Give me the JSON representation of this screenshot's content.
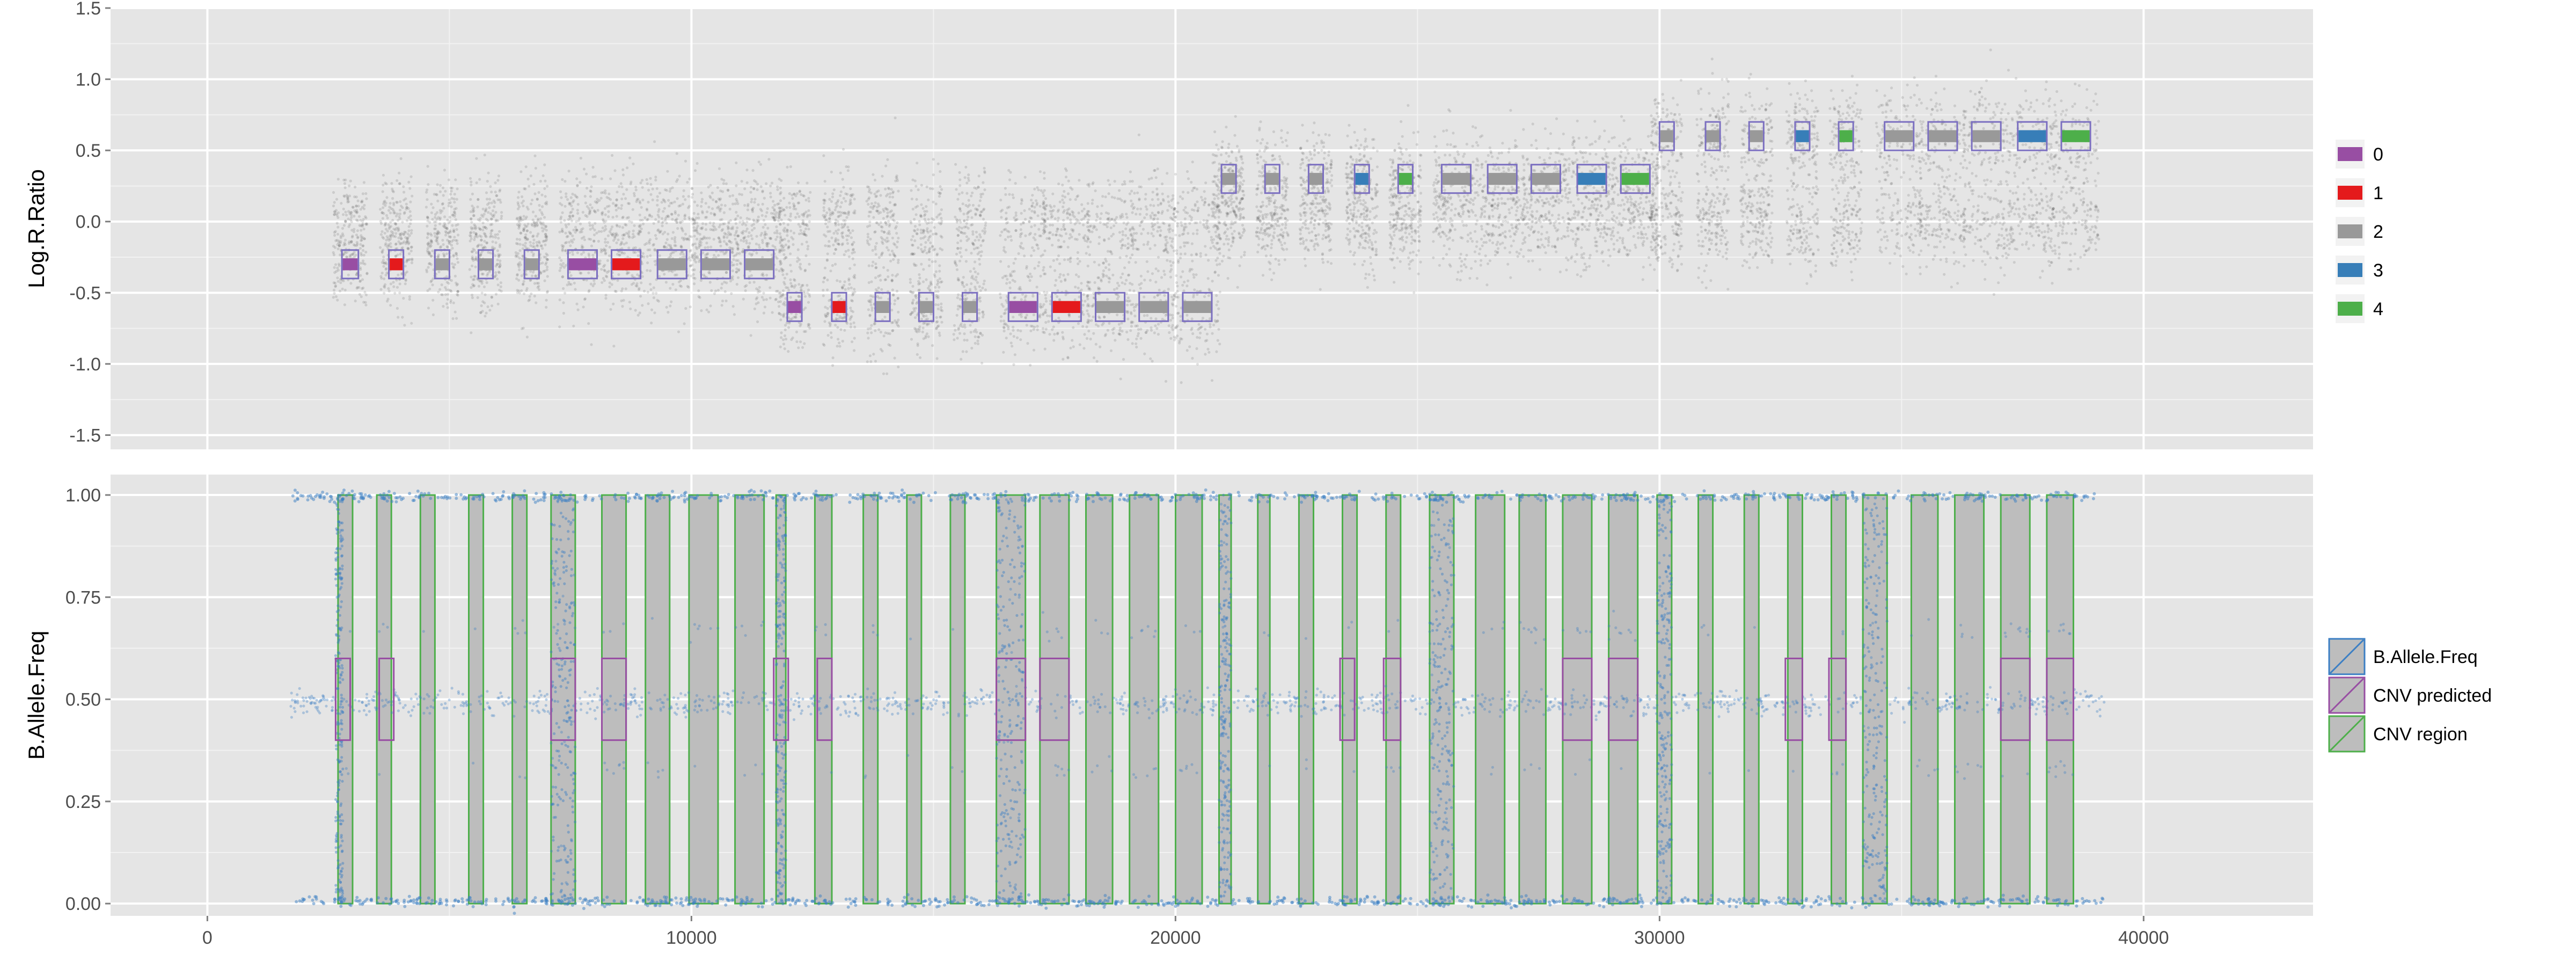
{
  "chart_data": [
    {
      "type": "scatter",
      "panel": "top",
      "ylabel": "Log.R.Ratio",
      "ylim": [
        -1.6,
        1.5
      ],
      "yticks": [
        -1.5,
        -1.0,
        -0.5,
        0.0,
        0.5,
        1.0,
        1.5
      ],
      "ytick_labels": [
        "-1.5",
        "-1.0",
        "-0.5",
        "0.0",
        "0.5",
        "1.0",
        "1.5"
      ],
      "xlim": [
        -2000,
        43500
      ],
      "xgrid": [
        0,
        10000,
        20000,
        30000,
        40000
      ],
      "grid": true,
      "point_color": "#333333",
      "legend": {
        "position": "right",
        "items": [
          {
            "label": "0",
            "color": "#984EA3"
          },
          {
            "label": "1",
            "color": "#E41A1C"
          },
          {
            "label": "2",
            "color": "#999999"
          },
          {
            "label": "3",
            "color": "#377EB8"
          },
          {
            "label": "4",
            "color": "#4DAF4A"
          }
        ]
      },
      "cnv_boxes": [
        {
          "x0": 2780,
          "x1": 3120,
          "y0": -0.4,
          "y1": -0.2,
          "state": "0"
        },
        {
          "x0": 3750,
          "x1": 4050,
          "y0": -0.4,
          "y1": -0.2,
          "state": "1"
        },
        {
          "x0": 4700,
          "x1": 5000,
          "y0": -0.4,
          "y1": -0.2,
          "state": "2"
        },
        {
          "x0": 5600,
          "x1": 5900,
          "y0": -0.4,
          "y1": -0.2,
          "state": "2"
        },
        {
          "x0": 6550,
          "x1": 6850,
          "y0": -0.4,
          "y1": -0.2,
          "state": "2"
        },
        {
          "x0": 7450,
          "x1": 8050,
          "y0": -0.4,
          "y1": -0.2,
          "state": "0"
        },
        {
          "x0": 8350,
          "x1": 8950,
          "y0": -0.4,
          "y1": -0.2,
          "state": "1"
        },
        {
          "x0": 9300,
          "x1": 9900,
          "y0": -0.4,
          "y1": -0.2,
          "state": "2"
        },
        {
          "x0": 10200,
          "x1": 10800,
          "y0": -0.4,
          "y1": -0.2,
          "state": "2"
        },
        {
          "x0": 11100,
          "x1": 11700,
          "y0": -0.4,
          "y1": -0.2,
          "state": "2"
        },
        {
          "x0": 11980,
          "x1": 12280,
          "y0": -0.7,
          "y1": -0.5,
          "state": "0"
        },
        {
          "x0": 12900,
          "x1": 13200,
          "y0": -0.7,
          "y1": -0.5,
          "state": "1"
        },
        {
          "x0": 13800,
          "x1": 14100,
          "y0": -0.7,
          "y1": -0.5,
          "state": "2"
        },
        {
          "x0": 14700,
          "x1": 15000,
          "y0": -0.7,
          "y1": -0.5,
          "state": "2"
        },
        {
          "x0": 15600,
          "x1": 15900,
          "y0": -0.7,
          "y1": -0.5,
          "state": "2"
        },
        {
          "x0": 16550,
          "x1": 17150,
          "y0": -0.7,
          "y1": -0.5,
          "state": "0"
        },
        {
          "x0": 17450,
          "x1": 18050,
          "y0": -0.7,
          "y1": -0.5,
          "state": "1"
        },
        {
          "x0": 18350,
          "x1": 18950,
          "y0": -0.7,
          "y1": -0.5,
          "state": "2"
        },
        {
          "x0": 19250,
          "x1": 19850,
          "y0": -0.7,
          "y1": -0.5,
          "state": "2"
        },
        {
          "x0": 20150,
          "x1": 20750,
          "y0": -0.7,
          "y1": -0.5,
          "state": "2"
        },
        {
          "x0": 20950,
          "x1": 21250,
          "y0": 0.2,
          "y1": 0.4,
          "state": "2"
        },
        {
          "x0": 21850,
          "x1": 22150,
          "y0": 0.2,
          "y1": 0.4,
          "state": "2"
        },
        {
          "x0": 22750,
          "x1": 23050,
          "y0": 0.2,
          "y1": 0.4,
          "state": "2"
        },
        {
          "x0": 23700,
          "x1": 24000,
          "y0": 0.2,
          "y1": 0.4,
          "state": "3"
        },
        {
          "x0": 24600,
          "x1": 24900,
          "y0": 0.2,
          "y1": 0.4,
          "state": "4"
        },
        {
          "x0": 25500,
          "x1": 26100,
          "y0": 0.2,
          "y1": 0.4,
          "state": "2"
        },
        {
          "x0": 26450,
          "x1": 27050,
          "y0": 0.2,
          "y1": 0.4,
          "state": "2"
        },
        {
          "x0": 27350,
          "x1": 27950,
          "y0": 0.2,
          "y1": 0.4,
          "state": "2"
        },
        {
          "x0": 28300,
          "x1": 28900,
          "y0": 0.2,
          "y1": 0.4,
          "state": "3"
        },
        {
          "x0": 29200,
          "x1": 29800,
          "y0": 0.2,
          "y1": 0.4,
          "state": "4"
        },
        {
          "x0": 30000,
          "x1": 30300,
          "y0": 0.5,
          "y1": 0.7,
          "state": "2"
        },
        {
          "x0": 30950,
          "x1": 31250,
          "y0": 0.5,
          "y1": 0.7,
          "state": "2"
        },
        {
          "x0": 31850,
          "x1": 32150,
          "y0": 0.5,
          "y1": 0.7,
          "state": "2"
        },
        {
          "x0": 32800,
          "x1": 33100,
          "y0": 0.5,
          "y1": 0.7,
          "state": "3"
        },
        {
          "x0": 33700,
          "x1": 34000,
          "y0": 0.5,
          "y1": 0.7,
          "state": "4"
        },
        {
          "x0": 34650,
          "x1": 35250,
          "y0": 0.5,
          "y1": 0.7,
          "state": "2"
        },
        {
          "x0": 35550,
          "x1": 36150,
          "y0": 0.5,
          "y1": 0.7,
          "state": "2"
        },
        {
          "x0": 36450,
          "x1": 37050,
          "y0": 0.5,
          "y1": 0.7,
          "state": "2"
        },
        {
          "x0": 37400,
          "x1": 38000,
          "y0": 0.5,
          "y1": 0.7,
          "state": "3"
        },
        {
          "x0": 38300,
          "x1": 38900,
          "y0": 0.5,
          "y1": 0.7,
          "state": "4"
        }
      ]
    },
    {
      "type": "scatter",
      "panel": "bottom",
      "ylabel": "B.Allele.Freq",
      "ylim": [
        -0.03,
        1.05
      ],
      "yticks": [
        0.0,
        0.25,
        0.5,
        0.75,
        1.0
      ],
      "ytick_labels": [
        "0.00",
        "0.25",
        "0.50",
        "0.75",
        "1.00"
      ],
      "xlabel": "",
      "xlim": [
        -2000,
        43500
      ],
      "xticks": [
        0,
        10000,
        20000,
        30000,
        40000
      ],
      "xtick_labels": [
        "0",
        "10000",
        "20000",
        "30000",
        "40000"
      ],
      "grid": true,
      "data_range": [
        1700,
        39200
      ],
      "point_color": "#3C7FC4",
      "legend": {
        "position": "right",
        "items": [
          {
            "label": "B.Allele.Freq",
            "color": "#3C7FC4"
          },
          {
            "label": "CNV predicted",
            "color": "#984EA3"
          },
          {
            "label": "CNV region",
            "color": "#4DAF4A"
          }
        ]
      },
      "dense_regions": [
        [
          2650,
          2800
        ],
        [
          7100,
          7600
        ],
        [
          11750,
          11950
        ],
        [
          16300,
          16900
        ],
        [
          20900,
          21150
        ],
        [
          25250,
          25750
        ],
        [
          29950,
          30250
        ],
        [
          34200,
          34700
        ]
      ],
      "cnv_regions": [
        [
          2700,
          3000
        ],
        [
          3500,
          3800
        ],
        [
          4400,
          4700
        ],
        [
          5400,
          5700
        ],
        [
          6300,
          6600
        ],
        [
          7100,
          7600
        ],
        [
          8150,
          8650
        ],
        [
          9050,
          9550
        ],
        [
          9950,
          10550
        ],
        [
          10900,
          11500
        ],
        [
          11750,
          11950
        ],
        [
          12550,
          12900
        ],
        [
          13550,
          13850
        ],
        [
          14450,
          14750
        ],
        [
          15350,
          15650
        ],
        [
          16300,
          16900
        ],
        [
          17200,
          17800
        ],
        [
          18150,
          18700
        ],
        [
          19050,
          19650
        ],
        [
          20000,
          20550
        ],
        [
          20900,
          21150
        ],
        [
          21700,
          21950
        ],
        [
          22550,
          22850
        ],
        [
          23450,
          23750
        ],
        [
          24350,
          24650
        ],
        [
          25250,
          25750
        ],
        [
          26200,
          26800
        ],
        [
          27100,
          27650
        ],
        [
          28000,
          28600
        ],
        [
          28950,
          29550
        ],
        [
          29950,
          30250
        ],
        [
          30800,
          31100
        ],
        [
          31750,
          32050
        ],
        [
          32650,
          32950
        ],
        [
          33550,
          33850
        ],
        [
          34200,
          34700
        ],
        [
          35200,
          35750
        ],
        [
          36100,
          36700
        ],
        [
          37050,
          37650
        ],
        [
          38000,
          38550
        ]
      ],
      "cnv_predicted": [
        [
          2650,
          2950
        ],
        [
          3550,
          3850
        ],
        [
          7100,
          7600
        ],
        [
          8150,
          8650
        ],
        [
          11700,
          12000
        ],
        [
          12600,
          12900
        ],
        [
          16300,
          16900
        ],
        [
          17200,
          17800
        ],
        [
          23400,
          23700
        ],
        [
          24300,
          24650
        ],
        [
          28000,
          28600
        ],
        [
          28950,
          29550
        ],
        [
          32600,
          32950
        ],
        [
          33500,
          33850
        ],
        [
          37050,
          37650
        ],
        [
          38000,
          38550
        ]
      ]
    }
  ]
}
